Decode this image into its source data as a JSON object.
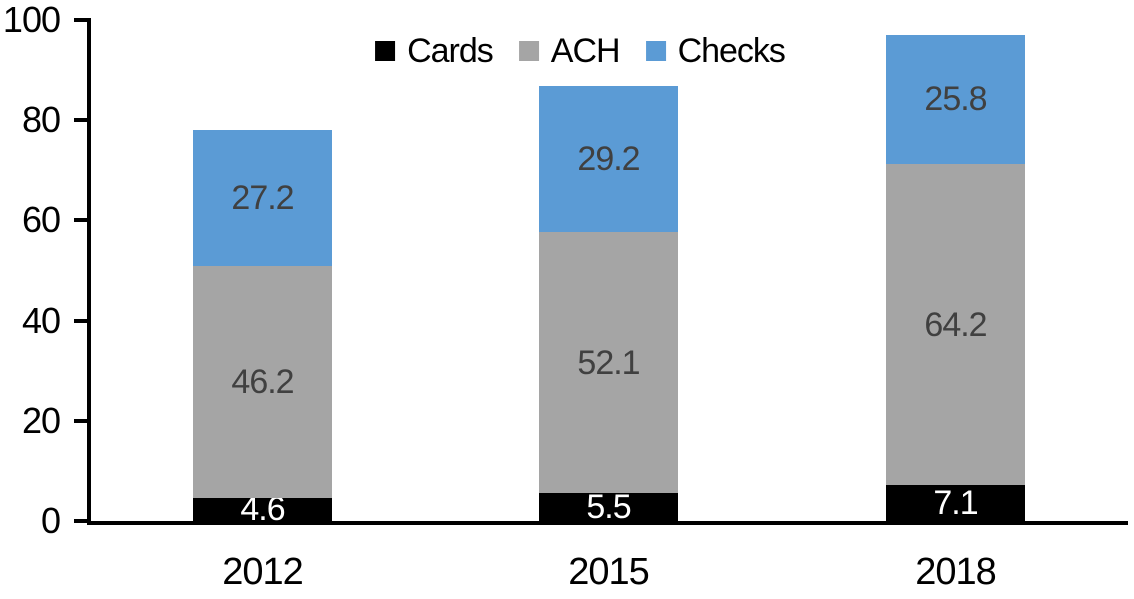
{
  "chart_data": {
    "type": "bar",
    "stacked": true,
    "title": "",
    "xlabel": "",
    "ylabel": "",
    "categories": [
      "2012",
      "2015",
      "2018"
    ],
    "series": [
      {
        "name": "Cards",
        "color": "#000000",
        "label_color": "#ffffff",
        "values": [
          4.6,
          5.5,
          7.1
        ]
      },
      {
        "name": "ACH",
        "color": "#a5a5a5",
        "label_color": "#404040",
        "values": [
          46.2,
          52.1,
          64.2
        ]
      },
      {
        "name": "Checks",
        "color": "#5b9bd5",
        "label_color": "#404040",
        "values": [
          27.2,
          29.2,
          25.8
        ]
      }
    ],
    "totals": [
      78.0,
      86.8,
      97.1
    ],
    "segment_labels": [
      [
        "4.6",
        "5.5",
        "7.1"
      ],
      [
        "46.2",
        "52.1",
        "64.2"
      ],
      [
        "27.2",
        "29.2",
        "25.8"
      ]
    ],
    "ylim": [
      0,
      100
    ],
    "yticks": [
      0,
      20,
      40,
      60,
      80,
      100
    ],
    "ytick_labels": [
      "0",
      "20",
      "40",
      "60",
      "80",
      "100"
    ],
    "grid": false,
    "legend_position": "top",
    "legend_entries": [
      "Cards",
      "ACH",
      "Checks"
    ],
    "axis_color": "#000000",
    "background_color": "#ffffff"
  }
}
